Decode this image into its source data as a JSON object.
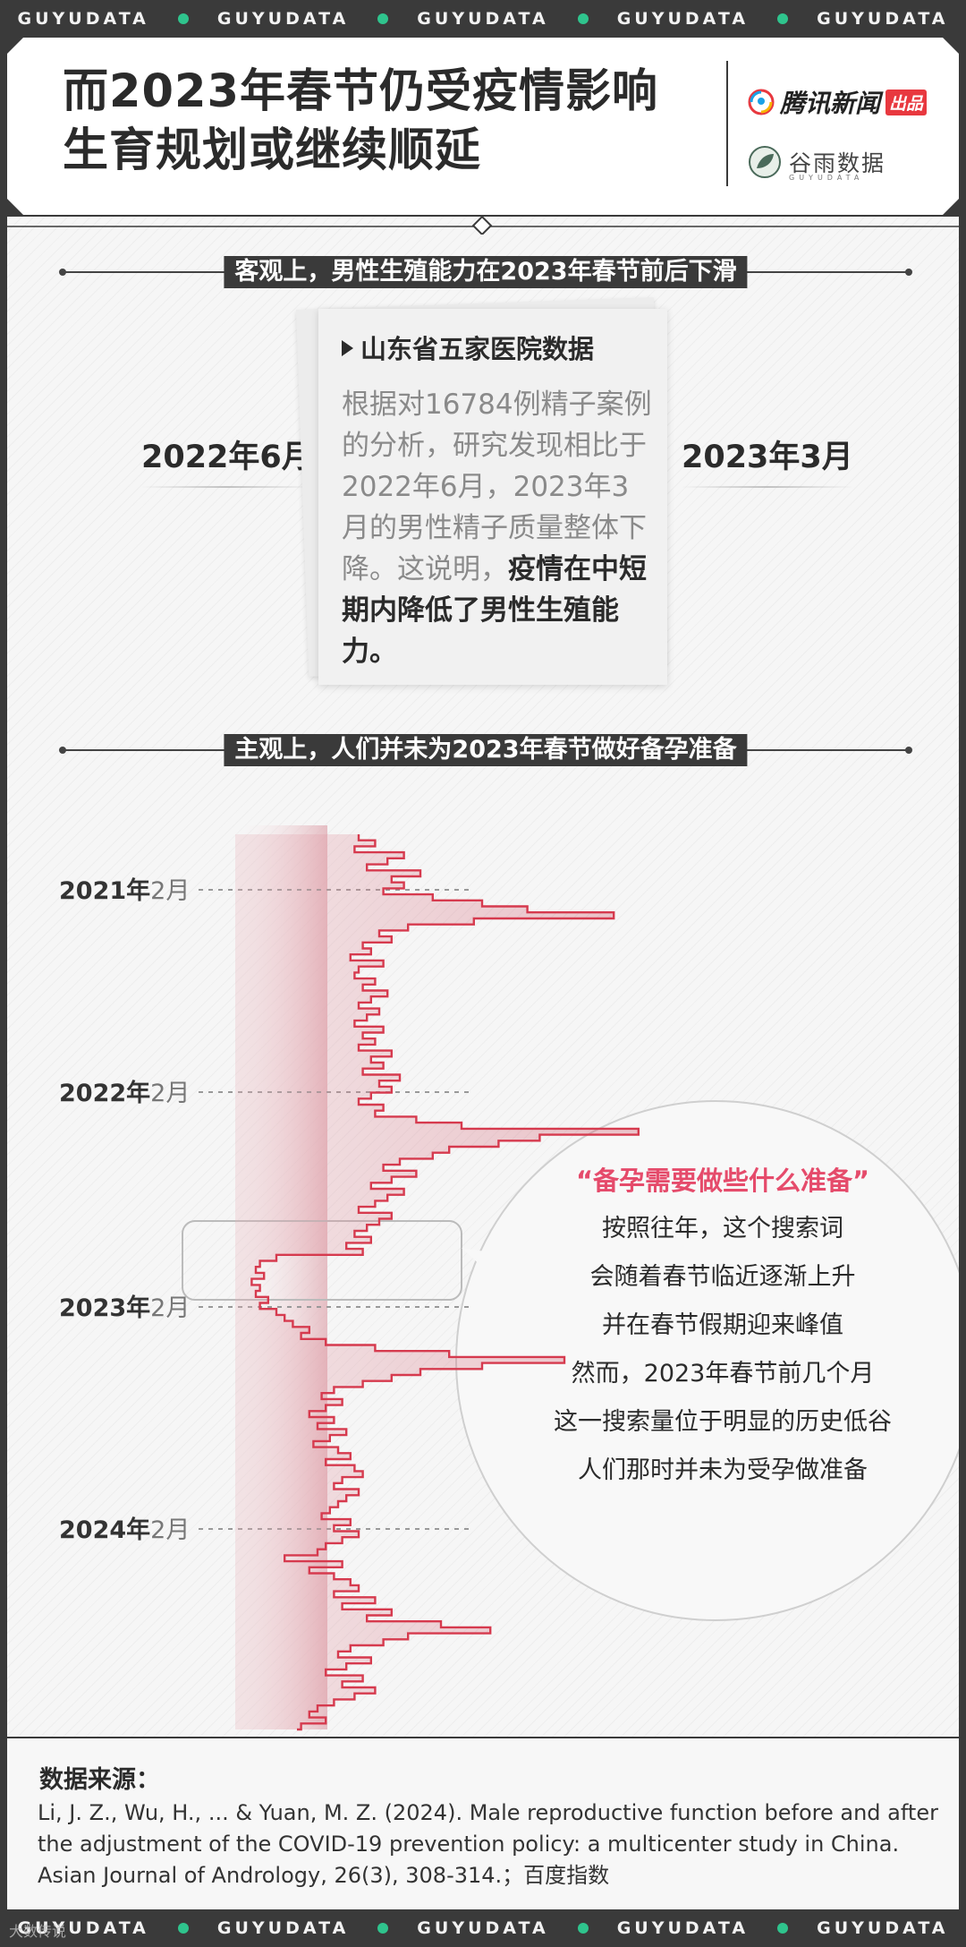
{
  "band": {
    "word": "GUYUDATA",
    "watermark": "大数传说"
  },
  "header": {
    "title_line1": "而2023年春节仍受疫情影响",
    "title_line2": "生育规划或继续顺延",
    "logo1_name": "腾讯新闻",
    "logo1_tag": "出品",
    "logo2_name": "谷雨数据",
    "logo2_sub": "GUYUDATA"
  },
  "section1": {
    "label": "客观上，男性生殖能力在2023年春节前后下滑",
    "left_date": "2022年6月",
    "right_date": "2023年3月",
    "card_title": "山东省五家医院数据",
    "card_body_plain": "根据对16784例精子案例的分析，研究发现相比于2022年6月，2023年3月的男性精子质量整体下降。这说明，",
    "card_body_bold": "疫情在中短期内降低了男性生殖能力。"
  },
  "section2": {
    "label": "主观上，人们并未为2023年春节做好备孕准备"
  },
  "chart_data": {
    "type": "line",
    "orientation": "vertical-time",
    "title": "",
    "series_name": "",
    "ticks": [
      {
        "year": "2021年",
        "month": "2月"
      },
      {
        "year": "2022年",
        "month": "2月"
      },
      {
        "year": "2023年",
        "month": "2月"
      },
      {
        "year": "2024年",
        "month": "2月"
      }
    ],
    "x_range": [
      0,
      100
    ],
    "values": [
      30,
      34,
      29,
      41,
      37,
      32,
      45,
      38,
      41,
      36,
      48,
      60,
      71,
      92,
      58,
      42,
      35,
      38,
      31,
      33,
      28,
      36,
      30,
      29,
      34,
      31,
      37,
      33,
      30,
      35,
      32,
      29,
      36,
      31,
      34,
      30,
      38,
      33,
      36,
      31,
      40,
      35,
      38,
      33,
      30,
      36,
      34,
      44,
      55,
      98,
      74,
      64,
      52,
      48,
      40,
      36,
      44,
      38,
      33,
      41,
      37,
      34,
      30,
      38,
      35,
      32,
      29,
      33,
      27,
      31,
      10,
      6,
      5,
      7,
      4,
      6,
      5,
      8,
      6,
      10,
      12,
      14,
      18,
      16,
      22,
      34,
      52,
      80,
      60,
      45,
      38,
      31,
      24,
      21,
      26,
      22,
      18,
      24,
      20,
      27,
      23,
      19,
      25,
      28,
      22,
      29,
      31,
      26,
      24,
      30,
      27,
      25,
      23,
      21,
      28,
      24,
      30,
      26,
      22,
      20,
      12,
      26,
      18,
      24,
      28,
      30,
      24,
      34,
      26,
      38,
      32,
      50,
      62,
      42,
      36,
      28,
      25,
      33,
      27,
      22,
      31,
      26,
      34,
      29,
      24,
      20,
      18,
      22,
      16,
      15
    ],
    "grid": false
  },
  "bubble": {
    "headline": "“备孕需要做些什么准备”",
    "lines": [
      "按照往年，这个搜索词",
      "会随着春节临近逐渐上升",
      "并在春节假期迎来峰值",
      "然而，2023年春节前几个月",
      "这一搜索量位于明显的历史低谷",
      "人们那时并未为受孕做准备"
    ]
  },
  "source": {
    "title": "数据来源：",
    "text": "Li, J. Z., Wu, H., ... & Yuan, M. Z. (2024). Male reproductive function before and after the adjustment of the COVID-19 prevention policy: a multicenter study in China. Asian Journal of Andrology, 26(3), 308-314.；百度指数"
  },
  "colors": {
    "line": "#d63a4e",
    "accent": "#e54b6b",
    "dark": "#3a3a3a",
    "band_dot": "#2fc48d"
  }
}
